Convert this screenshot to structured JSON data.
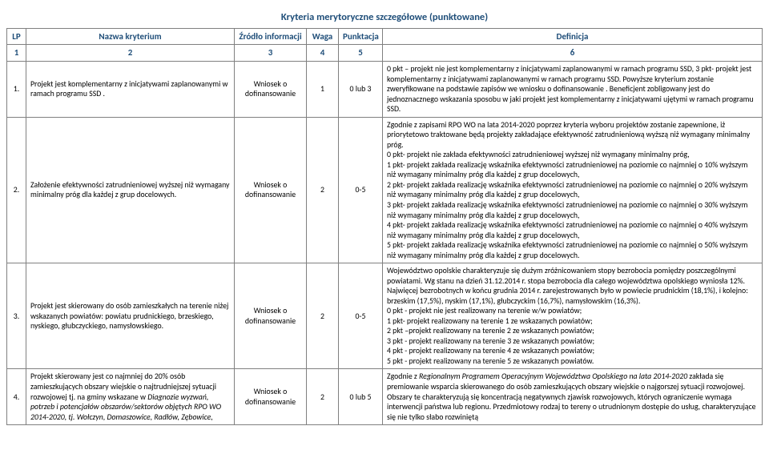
{
  "title": "Kryteria merytoryczne szczegółowe (punktowane)",
  "headers": {
    "lp": "LP",
    "name": "Nazwa kryterium",
    "source": "Źródło informacji",
    "waga": "Waga",
    "punktacja": "Punktacja",
    "definicja": "Definicja",
    "sub": [
      "1",
      "2",
      "3",
      "4",
      "5",
      "6"
    ]
  },
  "source_text": "Wniosek o dofinansowanie",
  "rows": [
    {
      "lp": "1.",
      "name": "Projekt jest komplementarny z inicjatywami zaplanowanymi w ramach programu SSD .",
      "waga": "1",
      "pkt": "0 lub 3",
      "def": "0 pkt – projekt nie jest komplementarny z inicjatywami zaplanowanymi w ramach programu SSD, 3 pkt- projekt jest komplementarny z inicjatywami zaplanowanymi w ramach programu SSD. Powyższe kryterium zostanie zweryfikowane na podstawie zapisów we wniosku o dofinansowanie . Beneficjent zobligowany jest do jednoznacznego wskazania sposobu w jaki projekt jest komplementarny z inicjatywami ujętymi w ramach programu SSD."
    },
    {
      "lp": "2.",
      "name": "Założenie efektywności zatrudnieniowej wyższej niż wymagany minimalny próg dla każdej z grup docelowych.",
      "waga": "2",
      "pkt": "0-5",
      "def": "Zgodnie z zapisami RPO WO na lata 2014-2020 poprzez kryteria wyboru projektów zostanie zapewnione, iż priorytetowo traktowane będą projekty zakładające efektywność zatrudnieniową wyższą niż wymagany minimalny próg.\n0 pkt- projekt nie zakłada efektywności zatrudnieniowej wyższej niż wymagany minimalny próg,\n1 pkt- projekt  zakłada realizację wskaźnika efektywności zatrudnieniowej na poziomie co najmniej o 10%  wyższym niż wymagany minimalny próg dla każdej z grup docelowych,\n2 pkt- projekt  zakłada realizację wskaźnika efektywności zatrudnieniowej na poziomie co najmniej o 20%  wyższym niż wymagany minimalny próg dla każdej z grup docelowych,\n3 pkt- projekt  zakłada realizację wskaźnika efektywności zatrudnieniowej na poziomie co najmniej o 30%  wyższym niż wymagany minimalny próg dla każdej z grup docelowych,\n4 pkt- projekt  zakłada realizację wskaźnika efektywności zatrudnieniowej na poziomie co najmniej o 40%  wyższym niż wymagany minimalny próg dla każdej z grup docelowych,\n5 pkt- projekt  zakłada realizację wskaźnika efektywności zatrudnieniowej na poziomie co najmniej o 50%  wyższym niż wymagany minimalny próg dla każdej z grup docelowych."
    },
    {
      "lp": "3.",
      "name": "Projekt jest skierowany do osób zamieszkałych na terenie niżej wskazanych powiatów: powiatu prudnickiego, brzeskiego, nyskiego, głubczyckiego, namysłowskiego.",
      "waga": "2",
      "pkt": "0-5",
      "def": "Województwo opolskie charakteryzuje się dużym zróżnicowaniem stopy bezrobocia pomiędzy poszczególnymi powiatami. Wg stanu na dzień 31.12.2014 r. stopa bezrobocia dla całego województwa opolskiego wyniosła 12%. Najwięcej bezrobotnych w końcu grudnia 2014 r. zarejestrowanych było w powiecie prudnickim (18,1%), i kolejno: brzeskim (17,5%), nyskim (17,1%), głubczyckim (16,7%), namysłowskim (16,3%).\n0 pkt - projekt nie jest realizowany na terenie w/w powiatów;\n1 pkt- projekt realizowany na terenie 1 ze wskazanych powiatów;\n2 pkt –projekt realizowany na terenie 2 ze wskazanych powiatów;\n3 pkt - projekt realizowany na terenie 3 ze wskazanych powiatów;\n4 pkt - projekt realizowany na terenie 4 ze wskazanych powiatów;\n5 pkt - projekt realizowany na terenie 5 ze wskazanych powiatów."
    },
    {
      "lp": "4.",
      "name_pre": "Projekt skierowany jest co najmniej do 20% osób zamieszkujących obszary wiejskie o najtrudniejszej sytuacji rozwojowej tj. na gminy wskazane w ",
      "name_it": "Diagnozie wyzwań, potrzeb i potencjałów obszarów/sektorów objętych RPO WO 2014-2020, tj. Wołczyn, Domaszowice, Radłów, Zębowice,",
      "waga": "2",
      "pkt": "0 lub 5",
      "def_pre": "Zgodnie z ",
      "def_it": "Regionalnym Programem Operacyjnym Województwa Opolskiego na lata 2014-2020",
      "def_post": " zakłada się premiowanie wsparcia skierowanego do osób zamieszkujących obszary wiejskie o najgorszej sytuacji rozwojowej. Obszary te charakteryzują się koncentracją negatywnych zjawisk rozwojowych, których ograniczenie wymaga interwencji państwa lub regionu. Przedmiotowy rodzaj to tereny o utrudnionym dostępie do usług, charakteryzujące się nie tylko słabo rozwiniętą"
    }
  ],
  "colors": {
    "header_text": "#1f4e79",
    "border": "#808080",
    "background": "#ffffff"
  }
}
